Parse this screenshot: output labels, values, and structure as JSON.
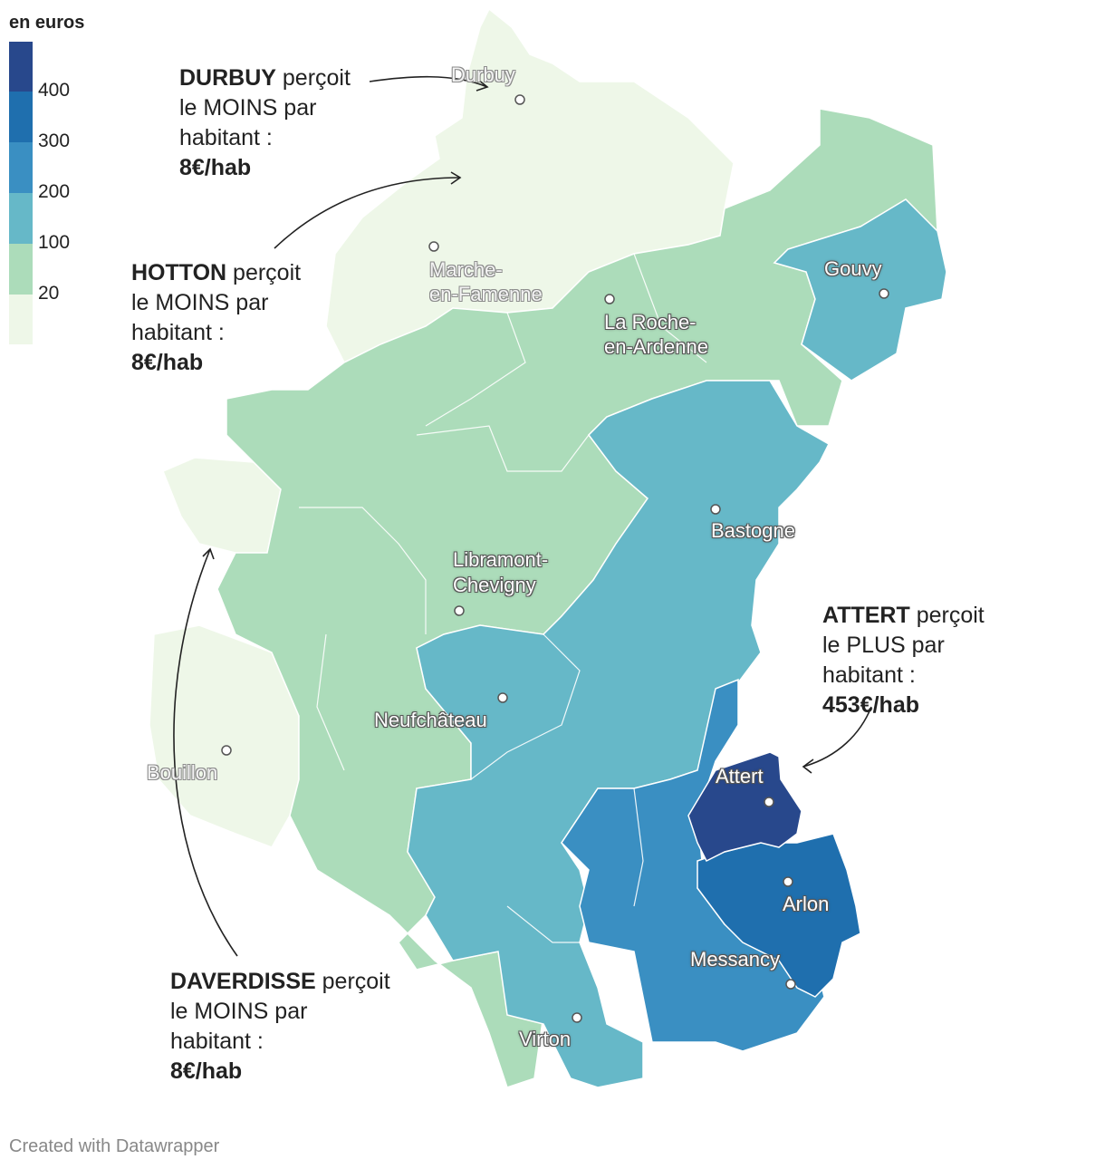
{
  "legend": {
    "title": "en euros",
    "ticks": [
      "400",
      "300",
      "200",
      "100",
      "20"
    ],
    "colors": [
      "#28488c",
      "#1f6fae",
      "#3a8fc2",
      "#66b8c8",
      "#acdcba",
      "#eef7e8"
    ]
  },
  "cities": [
    {
      "name": "Durbuy"
    },
    {
      "name_line1": "Marche-",
      "name_line2": "en-Famenne"
    },
    {
      "name_line1": "La Roche-",
      "name_line2": "en-Ardenne"
    },
    {
      "name": "Gouvy"
    },
    {
      "name": "Bastogne"
    },
    {
      "name_line1": "Libramont-",
      "name_line2": "Chevigny"
    },
    {
      "name": "Neufchâteau"
    },
    {
      "name": "Bouillon"
    },
    {
      "name": "Attert"
    },
    {
      "name": "Arlon"
    },
    {
      "name": "Messancy"
    },
    {
      "name": "Virton"
    }
  ],
  "annotations": {
    "durbuy": {
      "bold": "DURBUY",
      "rest1": " perçoit",
      "line2": "le MOINS par",
      "line3": "habitant :",
      "value": "8€/hab"
    },
    "hotton": {
      "bold": "HOTTON",
      "rest1": " perçoit",
      "line2": "le MOINS par",
      "line3": "habitant :",
      "value": "8€/hab"
    },
    "attert": {
      "bold": "ATTERT",
      "rest1": " perçoit",
      "line2": "le PLUS par",
      "line3": "habitant :",
      "value": "453€/hab"
    },
    "daverdisse": {
      "bold": "DAVERDISSE",
      "rest1": " perçoit",
      "line2": "le MOINS par",
      "line3": "habitant :",
      "value": "8€/hab"
    }
  },
  "footer": "Created with Datawrapper"
}
